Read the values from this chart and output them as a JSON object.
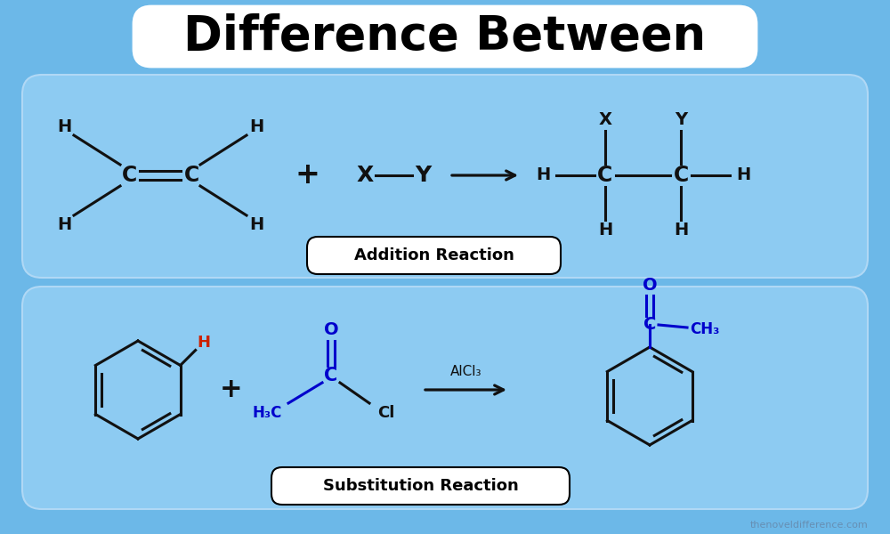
{
  "bg_color": "#6CB8E8",
  "panel_color": "#8DCBF2",
  "panel_edge_color": "#B0D8F5",
  "title_text": "Difference Between",
  "title_font_size": 38,
  "addition_label": "Addition Reaction",
  "substitution_label": "Substitution Reaction",
  "bond_color": "#111111",
  "blue_color": "#0000CC",
  "red_color": "#CC2200",
  "watermark": "thenoveldifference.com"
}
